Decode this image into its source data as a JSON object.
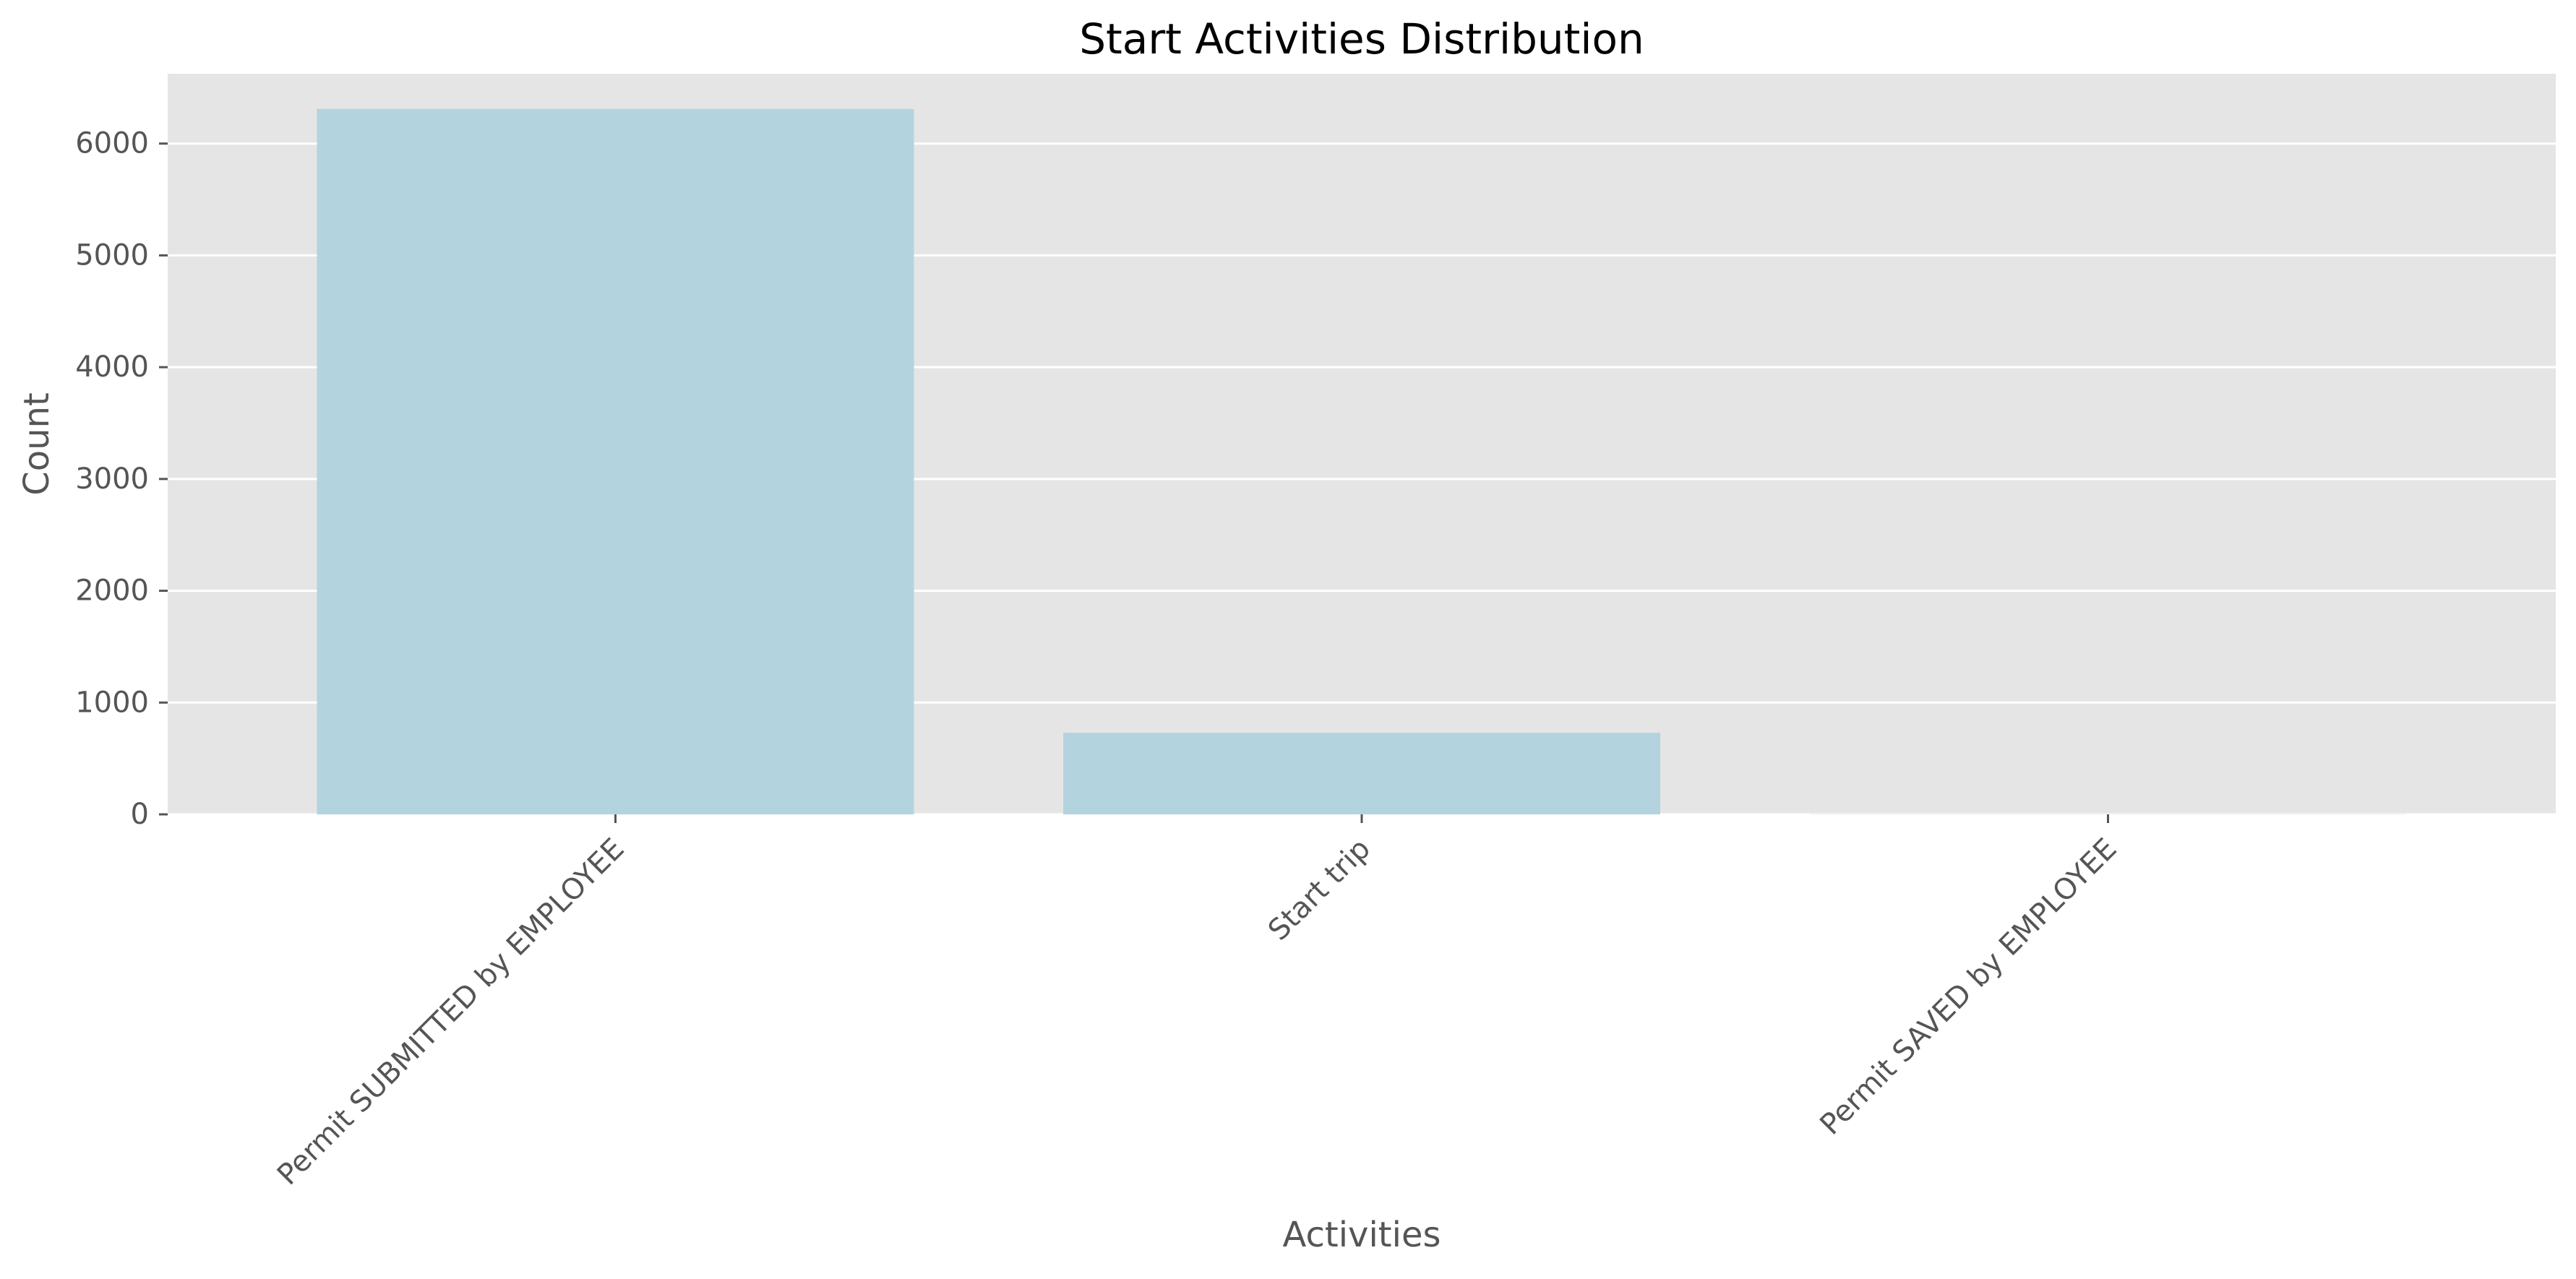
{
  "chart_data": {
    "type": "bar",
    "title": "Start Activities Distribution",
    "xlabel": "Activities",
    "ylabel": "Count",
    "categories": [
      "Permit SUBMITTED by EMPLOYEE",
      "Start trip",
      "Permit SAVED by EMPLOYEE"
    ],
    "values": [
      6310,
      730,
      2
    ],
    "yticks": [
      0,
      1000,
      2000,
      3000,
      4000,
      5000,
      6000
    ],
    "ylim": [
      0,
      6625
    ],
    "grid": true,
    "legend": "none",
    "colors": {
      "bar": "#b3d4df",
      "plot_background": "#e5e5e5",
      "grid": "#ffffff"
    }
  }
}
